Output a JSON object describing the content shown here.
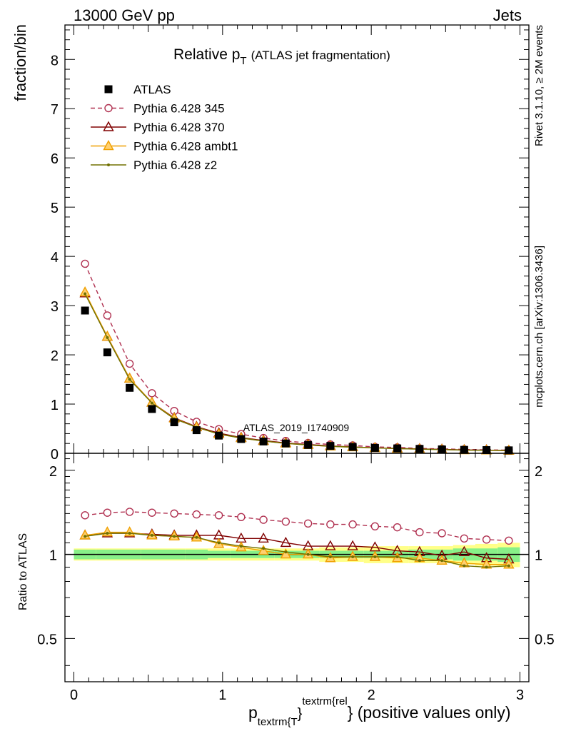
{
  "header": {
    "left": "13000 GeV pp",
    "right": "Jets"
  },
  "side_labels": {
    "rivet": "Rivet 3.1.10, ≥ 2M events",
    "source": "mcplots.cern.ch [arXiv:1306.3436]"
  },
  "chart_data": {
    "type": "line",
    "title_main": "Relative p",
    "title_sub": "T",
    "title_rest": "(ATLAS jet fragmentation)",
    "watermark": "ATLAS_2019_I1740909",
    "xlabel_p": "p",
    "xlabel_sub": "textrm{T",
    "xlabel_sup": "textrm{rel",
    "xlabel_rest": "} (positive values only)",
    "ylabel": "fraction/bin",
    "ratio_ylabel": "Ratio to ATLAS",
    "xlim": [
      -0.06,
      3.06
    ],
    "ylim": [
      0,
      8.7
    ],
    "ratio_ylim": [
      0.35,
      2.3
    ],
    "x_ticks": [
      "0",
      "1",
      "2",
      "3"
    ],
    "y_ticks": [
      "0",
      "1",
      "2",
      "3",
      "4",
      "5",
      "6",
      "7",
      "8"
    ],
    "ratio_ticks": [
      "0.5",
      "1",
      "2"
    ],
    "x": [
      0.075,
      0.225,
      0.375,
      0.525,
      0.675,
      0.825,
      0.975,
      1.125,
      1.275,
      1.425,
      1.575,
      1.725,
      1.875,
      2.025,
      2.175,
      2.325,
      2.475,
      2.625,
      2.775,
      2.925
    ],
    "series": [
      {
        "name": "ATLAS",
        "color": "#000000",
        "marker": "square",
        "values": [
          2.9,
          2.05,
          1.33,
          0.9,
          0.63,
          0.47,
          0.36,
          0.29,
          0.24,
          0.2,
          0.17,
          0.15,
          0.13,
          0.11,
          0.1,
          0.09,
          0.08,
          0.07,
          0.065,
          0.06
        ],
        "ratio": [
          1,
          1,
          1,
          1,
          1,
          1,
          1,
          1,
          1,
          1,
          1,
          1,
          1,
          1,
          1,
          1,
          1,
          1,
          1,
          1
        ]
      },
      {
        "name": "Pythia 6.428 345",
        "color": "#b03050",
        "marker": "circle",
        "dashed": true,
        "values": [
          3.85,
          2.8,
          1.82,
          1.22,
          0.86,
          0.64,
          0.49,
          0.39,
          0.31,
          0.25,
          0.21,
          0.18,
          0.16,
          0.13,
          0.12,
          0.1,
          0.09,
          0.08,
          0.07,
          0.065
        ],
        "ratio": [
          1.38,
          1.41,
          1.42,
          1.41,
          1.4,
          1.39,
          1.38,
          1.36,
          1.33,
          1.31,
          1.29,
          1.28,
          1.28,
          1.26,
          1.25,
          1.2,
          1.19,
          1.14,
          1.13,
          1.12
        ]
      },
      {
        "name": "Pythia 6.428 370",
        "color": "#800000",
        "marker": "triangle",
        "values": [
          3.25,
          2.37,
          1.52,
          1.03,
          0.72,
          0.54,
          0.41,
          0.32,
          0.26,
          0.21,
          0.18,
          0.15,
          0.13,
          0.11,
          0.1,
          0.09,
          0.08,
          0.07,
          0.065,
          0.055
        ],
        "ratio": [
          1.17,
          1.19,
          1.19,
          1.18,
          1.17,
          1.17,
          1.17,
          1.14,
          1.14,
          1.1,
          1.07,
          1.07,
          1.07,
          1.06,
          1.03,
          1.02,
          0.99,
          1.02,
          0.97,
          0.96
        ]
      },
      {
        "name": "Pythia 6.428 ambt1",
        "color": "#f0a000",
        "marker": "triangle",
        "values": [
          3.27,
          2.37,
          1.52,
          1.03,
          0.71,
          0.53,
          0.39,
          0.31,
          0.25,
          0.2,
          0.17,
          0.14,
          0.125,
          0.11,
          0.095,
          0.085,
          0.075,
          0.065,
          0.06,
          0.055
        ],
        "ratio": [
          1.17,
          1.2,
          1.2,
          1.17,
          1.16,
          1.15,
          1.09,
          1.06,
          1.03,
          1.0,
          1.0,
          0.97,
          0.98,
          0.98,
          0.97,
          0.97,
          0.95,
          0.93,
          0.92,
          0.92
        ]
      },
      {
        "name": "Pythia 6.428 z2",
        "color": "#707000",
        "marker": "dot",
        "values": [
          3.24,
          2.35,
          1.5,
          1.02,
          0.7,
          0.53,
          0.39,
          0.31,
          0.25,
          0.2,
          0.17,
          0.14,
          0.125,
          0.11,
          0.095,
          0.085,
          0.075,
          0.065,
          0.06,
          0.055
        ],
        "ratio": [
          1.16,
          1.19,
          1.19,
          1.17,
          1.16,
          1.15,
          1.1,
          1.07,
          1.05,
          1.02,
          1.0,
          0.98,
          0.98,
          0.98,
          0.98,
          0.95,
          0.95,
          0.91,
          0.9,
          0.91
        ]
      }
    ],
    "ratio_band_green": [
      0.04,
      0.04,
      0.04,
      0.04,
      0.04,
      0.04,
      0.03,
      0.03,
      0.03,
      0.03,
      0.03,
      0.03,
      0.03,
      0.03,
      0.03,
      0.04,
      0.04,
      0.05,
      0.05,
      0.06
    ],
    "ratio_band_yellow": [
      0.05,
      0.05,
      0.05,
      0.05,
      0.05,
      0.05,
      0.05,
      0.05,
      0.05,
      0.05,
      0.05,
      0.06,
      0.06,
      0.07,
      0.07,
      0.07,
      0.07,
      0.08,
      0.09,
      0.1
    ],
    "legend_position": "top-left",
    "grid": false
  }
}
